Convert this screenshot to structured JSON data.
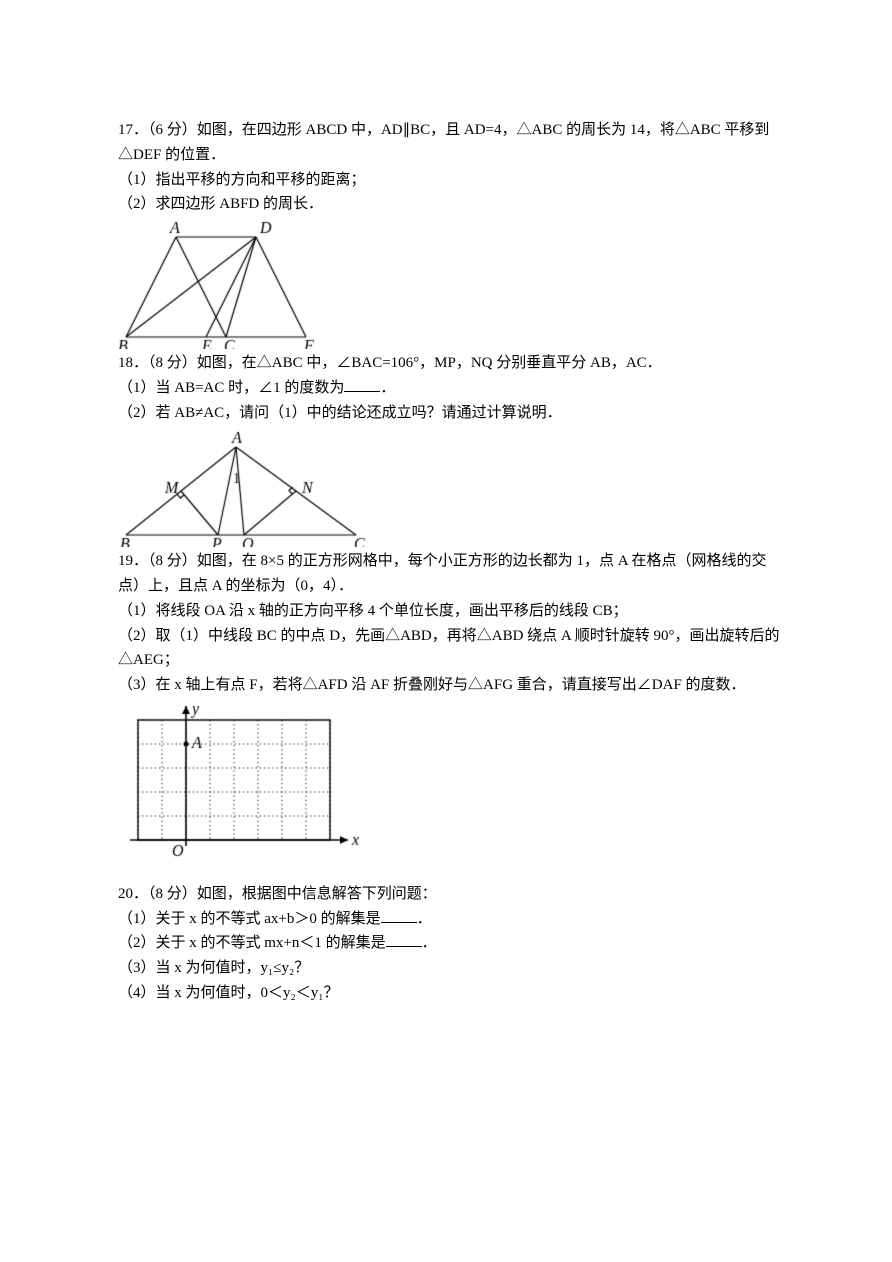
{
  "q17": {
    "number": "17．",
    "main": "（6 分）如图，在四边形 ABCD 中，AD∥BC，且 AD=4，△ABC 的周长为 14，将△ABC 平移到△DEF 的位置．",
    "p1": "（1）指出平移的方向和平移的距离；",
    "p2": "（2）求四边形 ABFD 的周长．",
    "fig": {
      "A": "A",
      "D": "D",
      "B": "B",
      "E": "E",
      "C": "C",
      "F": "F",
      "stroke": "#000000",
      "lineWidth": 1.2,
      "labelFont": "italic 16px 'Times New Roman', serif"
    }
  },
  "q18": {
    "number": "18．",
    "main": "（8 分）如图，在△ABC 中，∠BAC=106°，MP，NQ 分别垂直平分 AB，AC．",
    "p1a": "（1）当 AB=AC 时，∠1 的度数为",
    "p1b": "．",
    "p2": "（2）若 AB≠AC，请问（1）中的结论还成立吗？请通过计算说明．",
    "fig": {
      "A": "A",
      "B": "B",
      "C": "C",
      "M": "M",
      "N": "N",
      "P": "P",
      "Q": "Q",
      "one": "1",
      "stroke": "#000000",
      "lineWidth": 1.2,
      "labelFont": "italic 16px 'Times New Roman', serif",
      "smallFont": "14px 'Times New Roman', serif"
    }
  },
  "q19": {
    "number": "19．",
    "main": "（8 分）如图，在 8×5 的正方形网格中，每个小正方形的边长都为 1，点 A 在格点（网格线的交点）上，且点 A 的坐标为（0，4）．",
    "p1": "（1）将线段 OA 沿 x 轴的正方向平移 4 个单位长度，画出平移后的线段 CB；",
    "p2": "（2）取（1）中线段 BC 的中点 D，先画△ABD，再将△ABD 绕点 A 顺时针旋转 90°，画出旋转后的△AEG；",
    "p3": "（3）在 x 轴上有点 F，若将△AFD 沿 AF 折叠刚好与△AFG 重合，请直接写出∠DAF 的度数．",
    "fig": {
      "xLabel": "x",
      "yLabel": "y",
      "ALabel": "A",
      "OLabel": "O",
      "axisColor": "#000000",
      "gridColor": "#000000",
      "labelFont": "italic 16px 'Times New Roman', serif",
      "gridCols": 8,
      "gridRows": 5,
      "cell": 24,
      "originCol": 2,
      "ACol": 2,
      "ARowFromTop": 1
    }
  },
  "q20": {
    "number": "20．",
    "main": "（8 分）如图，根据图中信息解答下列问题：",
    "p1a": "（1）关于 x 的不等式 ax+b＞0 的解集是",
    "p1b": "．",
    "p2a": "（2）关于 x 的不等式 mx+n＜1 的解集是",
    "p2b": "．",
    "p3": "（3）当 x 为何值时，y₁≤y₂？",
    "p4": "（4）当 x 为何值时，0＜y₂＜y₁？"
  }
}
